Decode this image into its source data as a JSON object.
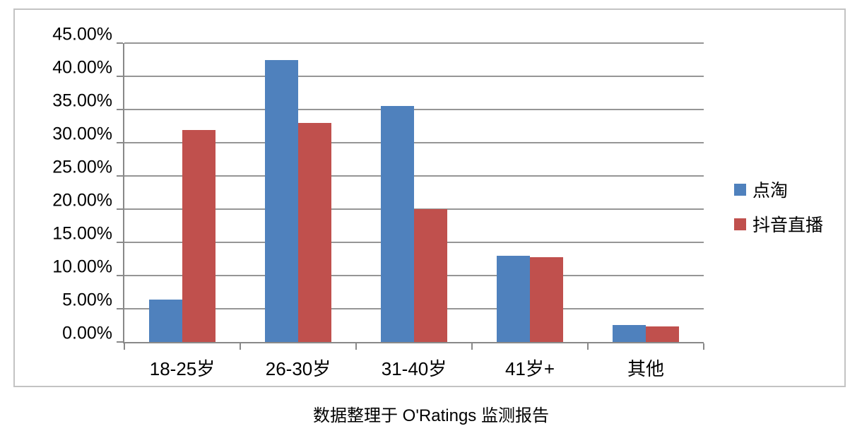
{
  "caption": "数据整理于 O'Ratings 监测报告",
  "chart_data": {
    "type": "bar",
    "title": "",
    "xlabel": "",
    "ylabel": "",
    "categories": [
      "18-25岁",
      "26-30岁",
      "31-40岁",
      "41岁+",
      "其他"
    ],
    "series": [
      {
        "name": "点淘",
        "color": "#4F81BD",
        "values": [
          6.4,
          42.5,
          35.5,
          13.0,
          2.6
        ]
      },
      {
        "name": "抖音直播",
        "color": "#C0504D",
        "values": [
          31.9,
          33.0,
          20.0,
          12.8,
          2.3
        ]
      }
    ],
    "ylim": [
      0,
      45
    ],
    "ytick_step": 5,
    "ytick_labels": [
      "0.00%",
      "5.00%",
      "10.00%",
      "15.00%",
      "20.00%",
      "25.00%",
      "30.00%",
      "35.00%",
      "40.00%",
      "45.00%"
    ],
    "grid": true,
    "legend_position": "right",
    "gridline_color": "#969696",
    "axis_color": "#898989",
    "frame_border_color": "#c3c3c3"
  }
}
